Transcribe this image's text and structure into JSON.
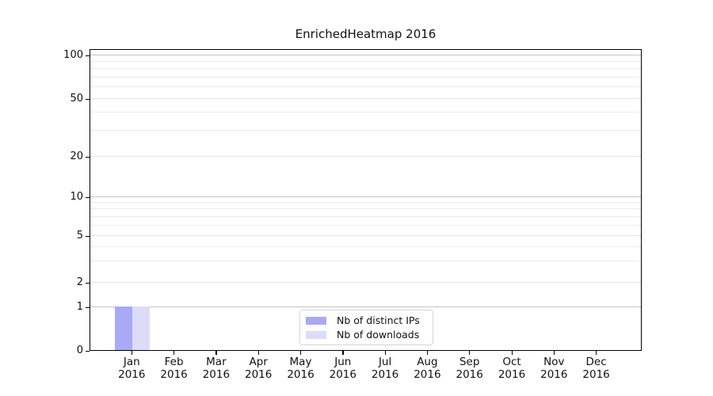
{
  "figure": {
    "title": "EnrichedHeatmap 2016"
  },
  "legend": {
    "items": [
      {
        "label": "Nb of distinct IPs",
        "color": "#a9a9f5"
      },
      {
        "label": "Nb of downloads",
        "color": "#dddcf8"
      }
    ]
  },
  "y_axis": {
    "tick_labels": [
      "0",
      "1",
      "2",
      "5",
      "10",
      "20",
      "50",
      "100"
    ],
    "major_ticks": [
      0,
      1,
      2,
      5,
      10,
      20,
      50,
      100
    ],
    "decade_gridlines": [
      1,
      10,
      100
    ],
    "mid_gridlines": [
      2,
      5,
      20,
      50
    ],
    "minor_gridlines": [
      3,
      4,
      6,
      7,
      8,
      9,
      30,
      40,
      60,
      70,
      80,
      90
    ]
  },
  "chart_data": {
    "type": "bar",
    "title": "EnrichedHeatmap 2016",
    "categories": [
      "Jan 2016",
      "Feb 2016",
      "Mar 2016",
      "Apr 2016",
      "May 2016",
      "Jun 2016",
      "Jul 2016",
      "Aug 2016",
      "Sep 2016",
      "Oct 2016",
      "Nov 2016",
      "Dec 2016"
    ],
    "series": [
      {
        "name": "Nb of distinct IPs",
        "color": "#a9a9f5",
        "values": [
          1,
          0,
          0,
          0,
          0,
          0,
          0,
          0,
          0,
          0,
          0,
          0
        ]
      },
      {
        "name": "Nb of downloads",
        "color": "#dddcf8",
        "values": [
          1,
          0,
          0,
          0,
          0,
          0,
          0,
          0,
          0,
          0,
          0,
          0
        ]
      }
    ],
    "xlabel": "",
    "ylabel": "",
    "yscale": "log-like with zero baseline",
    "ytick_values": [
      0,
      1,
      2,
      5,
      10,
      20,
      50,
      100
    ],
    "ylim": [
      0,
      110
    ],
    "grid": "horizontal only",
    "legend_position": "lower center inside plot"
  },
  "colors": {
    "background": "#ffffff",
    "spine": "#000000",
    "grid_decade": "#c5c5c5",
    "grid_mid": "#e4e4e4",
    "grid_minor": "#ebebeb",
    "text": "#111111"
  }
}
